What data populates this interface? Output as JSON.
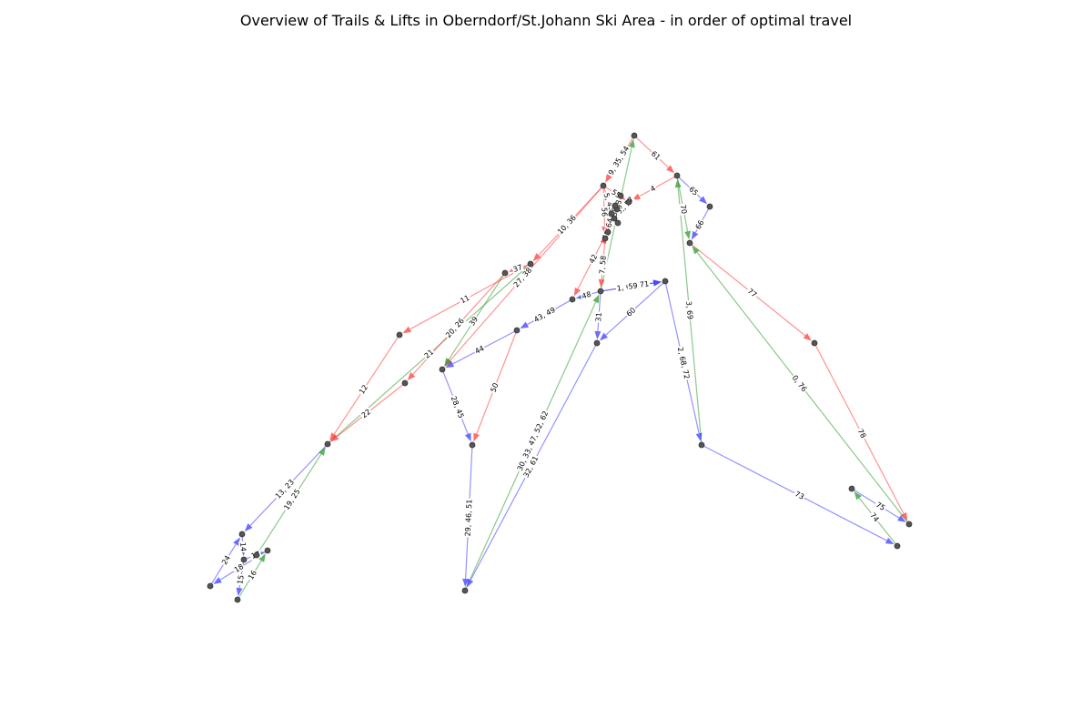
{
  "title": "Overview of Trails & Lifts in Oberndorf/St.Johann Ski Area - in order of optimal travel",
  "colors": {
    "red": "#ff3b3b",
    "green": "#2e9a2e",
    "blue": "#3b3bff",
    "node": "#555555"
  },
  "nodes": [
    "N1",
    "N2",
    "N3",
    "N4",
    "N5",
    "N6",
    "N7",
    "N8",
    "N9",
    "N10",
    "N11",
    "N12",
    "N13",
    "N14",
    "N15",
    "N16",
    "N17",
    "N18",
    "N19",
    "N20",
    "N21",
    "N22",
    "N23",
    "N24",
    "N25",
    "N26",
    "N27",
    "N28",
    "N29",
    "N30",
    "N31",
    "N32",
    "N33",
    "N34",
    "N35",
    "N36",
    "N37",
    "N38"
  ],
  "edges": [
    {
      "from": "N1",
      "to": "N3",
      "color": "red",
      "label": "61"
    },
    {
      "from": "N1",
      "to": "N2",
      "color": "red",
      "label": "9, 35, 54"
    },
    {
      "from": "N2",
      "to": "N6",
      "color": "red",
      "label": "10, 36"
    },
    {
      "from": "N2",
      "to": "N11",
      "color": "red",
      "label": "27, 38"
    },
    {
      "from": "N2",
      "to": "N9",
      "color": "red",
      "label": "5, 40"
    },
    {
      "from": "N3",
      "to": "N4",
      "color": "red",
      "label": "4"
    },
    {
      "from": "N3",
      "to": "N5",
      "color": "blue",
      "label": "65"
    },
    {
      "from": "N5",
      "to": "N13",
      "color": "blue",
      "label": "66"
    },
    {
      "from": "N13",
      "to": "N14",
      "color": "red",
      "label": "77"
    },
    {
      "from": "N14",
      "to": "N15",
      "color": "red",
      "label": "78"
    },
    {
      "from": "N15",
      "to": "N13",
      "color": "green",
      "label": "0, 76"
    },
    {
      "from": "N34",
      "to": "N3",
      "color": "green",
      "label": "3, 69"
    },
    {
      "from": "N3",
      "to": "N13",
      "color": "green",
      "label": "70"
    },
    {
      "from": "N12",
      "to": "N32",
      "color": "blue",
      "label": "1, 67, 71"
    },
    {
      "from": "N32",
      "to": "N34",
      "color": "blue",
      "label": "2, 68, 72"
    },
    {
      "from": "N34",
      "to": "N35",
      "color": "blue",
      "label": "73"
    },
    {
      "from": "N35",
      "to": "N36",
      "color": "green",
      "label": "74"
    },
    {
      "from": "N36",
      "to": "N15",
      "color": "blue",
      "label": "75"
    },
    {
      "from": "N6",
      "to": "N7",
      "color": "red",
      "label": "11"
    },
    {
      "from": "N7",
      "to": "N8",
      "color": "red",
      "label": "12"
    },
    {
      "from": "N8",
      "to": "N6",
      "color": "green",
      "label": "21"
    },
    {
      "from": "N6",
      "to": "N29",
      "color": "red",
      "label": "37"
    },
    {
      "from": "N29",
      "to": "N11",
      "color": "green",
      "label": "39"
    },
    {
      "from": "N29",
      "to": "N30",
      "color": "red",
      "label": "20, 26"
    },
    {
      "from": "N30",
      "to": "N8",
      "color": "red",
      "label": "22"
    },
    {
      "from": "N8",
      "to": "N20",
      "color": "blue",
      "label": "13, 23"
    },
    {
      "from": "N25",
      "to": "N8",
      "color": "green",
      "label": "19, 25"
    },
    {
      "from": "N20",
      "to": "N21",
      "color": "blue",
      "label": "14"
    },
    {
      "from": "N21",
      "to": "N23",
      "color": "blue",
      "label": "15"
    },
    {
      "from": "N23",
      "to": "N22",
      "color": "green",
      "label": "16"
    },
    {
      "from": "N21",
      "to": "N22",
      "color": "blue",
      "label": "17"
    },
    {
      "from": "N22",
      "to": "N24",
      "color": "blue",
      "label": "18"
    },
    {
      "from": "N24",
      "to": "N20",
      "color": "blue",
      "label": "24"
    },
    {
      "from": "N11",
      "to": "N16",
      "color": "blue",
      "label": "28, 45"
    },
    {
      "from": "N16",
      "to": "N17",
      "color": "blue",
      "label": "29, 46, 51"
    },
    {
      "from": "N17",
      "to": "N12",
      "color": "green",
      "label": "30, 33, 47, 52, 62"
    },
    {
      "from": "N12",
      "to": "N18",
      "color": "blue",
      "label": "31"
    },
    {
      "from": "N18",
      "to": "N17",
      "color": "blue",
      "label": "32, 61"
    },
    {
      "from": "N12",
      "to": "N1",
      "color": "green",
      "label": "34, 53"
    },
    {
      "from": "N19",
      "to": "N12",
      "color": "red",
      "label": "7, 58"
    },
    {
      "from": "N9",
      "to": "N10",
      "color": "red",
      "label": "42"
    },
    {
      "from": "N12",
      "to": "N10",
      "color": "blue",
      "label": "48"
    },
    {
      "from": "N10",
      "to": "N31",
      "color": "blue",
      "label": "43, 49"
    },
    {
      "from": "N31",
      "to": "N11",
      "color": "blue",
      "label": "44"
    },
    {
      "from": "N31",
      "to": "N16",
      "color": "red",
      "label": "50"
    },
    {
      "from": "N2",
      "to": "N4",
      "color": "red",
      "label": "55"
    },
    {
      "from": "N2",
      "to": "N19",
      "color": "red",
      "label": "56"
    },
    {
      "from": "N4",
      "to": "N9",
      "color": "red",
      "label": "6, 41, 57"
    },
    {
      "from": "N26",
      "to": "N27",
      "color": "red",
      "label": "8"
    },
    {
      "from": "N27",
      "to": "N28",
      "color": "red",
      "label": "59"
    },
    {
      "from": "N12",
      "to": "N32",
      "color": "blue",
      "label": "59"
    },
    {
      "from": "N32",
      "to": "N18",
      "color": "blue",
      "label": "60"
    },
    {
      "from": "N19",
      "to": "N33",
      "color": "red",
      "label": "63"
    },
    {
      "from": "N33",
      "to": "N37",
      "color": "red",
      "label": "64"
    },
    {
      "from": "N37",
      "to": "N38",
      "color": "red",
      "label": "39"
    },
    {
      "from": "N38",
      "to": "N9",
      "color": "red",
      "label": "38"
    }
  ]
}
